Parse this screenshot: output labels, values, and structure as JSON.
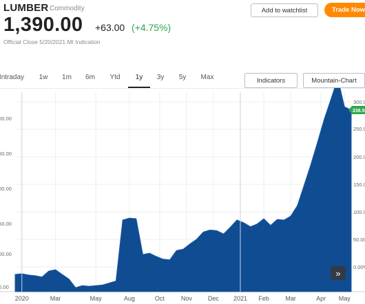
{
  "header": {
    "symbol": "LUMBER",
    "category": "Commodity",
    "price": "1,390.00",
    "change": "+63.00",
    "change_pct": "(+4.75%)",
    "close_note": "Official Close 5/20/2021 MI Indication"
  },
  "actions": {
    "watchlist": "Add to watchlist",
    "trade": "Trade Now"
  },
  "ranges": [
    "Intraday",
    "1w",
    "1m",
    "6m",
    "Ytd",
    "1y",
    "3y",
    "5y",
    "Max"
  ],
  "active_range": "1y",
  "tools": {
    "indicators": "Indicators",
    "chart_type": "Mountain-Chart"
  },
  "colors": {
    "area": "#0f4c92",
    "up": "#2ea84e",
    "accent": "#ff8a00"
  },
  "icons": {
    "expand": "double-chevron-right-icon"
  },
  "chart_data": {
    "type": "area",
    "x_ticks": [
      "2020",
      "Mar",
      "May",
      "Aug",
      "Oct",
      "Nov",
      "Dec",
      "2021",
      "Feb",
      "Mar",
      "Apr",
      "May"
    ],
    "x": [
      0,
      2,
      4,
      6,
      8,
      10,
      12,
      14,
      16,
      18,
      20,
      22,
      24,
      26,
      28,
      30,
      32,
      34,
      36,
      38,
      40,
      42,
      44,
      46,
      48,
      50,
      52,
      54,
      56,
      58,
      60,
      62,
      64,
      66,
      68,
      70,
      72,
      74,
      76,
      78,
      80,
      82,
      84,
      86,
      88,
      90,
      92,
      94,
      96,
      98,
      100
    ],
    "y": [
      300,
      301,
      299,
      298,
      296,
      305,
      307,
      300,
      293,
      280,
      283,
      282,
      283,
      284,
      287,
      290,
      382,
      385,
      384,
      330,
      332,
      327,
      323,
      322,
      336,
      338,
      346,
      353,
      364,
      367,
      366,
      361,
      371,
      382,
      378,
      372,
      376,
      384,
      374,
      383,
      382,
      388,
      404,
      435,
      466,
      500,
      535,
      565,
      596,
      553,
      548
    ],
    "ylim": [
      274,
      575
    ],
    "right_axis": {
      "label": "% change",
      "ticks": [
        "300.00%",
        "250.00%",
        "200.00%",
        "150.00%",
        "100.00%",
        "50.00%",
        "0.00%"
      ],
      "last_value": "236.56%"
    },
    "left_axis_ticks": [
      "300.00",
      "250.00",
      "200.00",
      "150.00",
      "100.00",
      "50.00"
    ]
  }
}
